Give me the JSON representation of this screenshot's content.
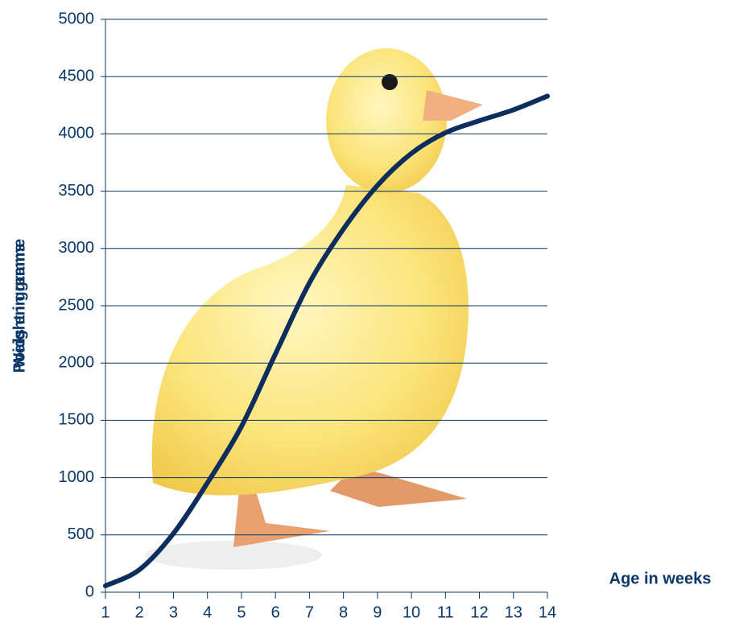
{
  "chart_data": {
    "type": "line",
    "y_label": [
      "Weight in grams",
      "Poids en gramme"
    ],
    "x_label": "Age in weeks",
    "x": [
      1,
      2,
      3,
      4,
      5,
      6,
      7,
      8,
      9,
      10,
      11,
      12,
      13,
      14
    ],
    "series": [
      {
        "color": "#0d2d5e",
        "values": [
          56,
          197,
          513,
          955,
          1447,
          2080,
          2700,
          3170,
          3550,
          3830,
          4010,
          4115,
          4210,
          4330
        ]
      }
    ],
    "xlim": [
      1,
      14
    ],
    "xticks": [
      1,
      2,
      3,
      4,
      5,
      6,
      7,
      8,
      9,
      10,
      11,
      12,
      13,
      14
    ],
    "ylim": [
      0,
      5000
    ],
    "yticks": [
      0,
      500,
      1000,
      1500,
      2000,
      2500,
      3000,
      3500,
      4000,
      4500,
      5000
    ],
    "grid": true
  }
}
